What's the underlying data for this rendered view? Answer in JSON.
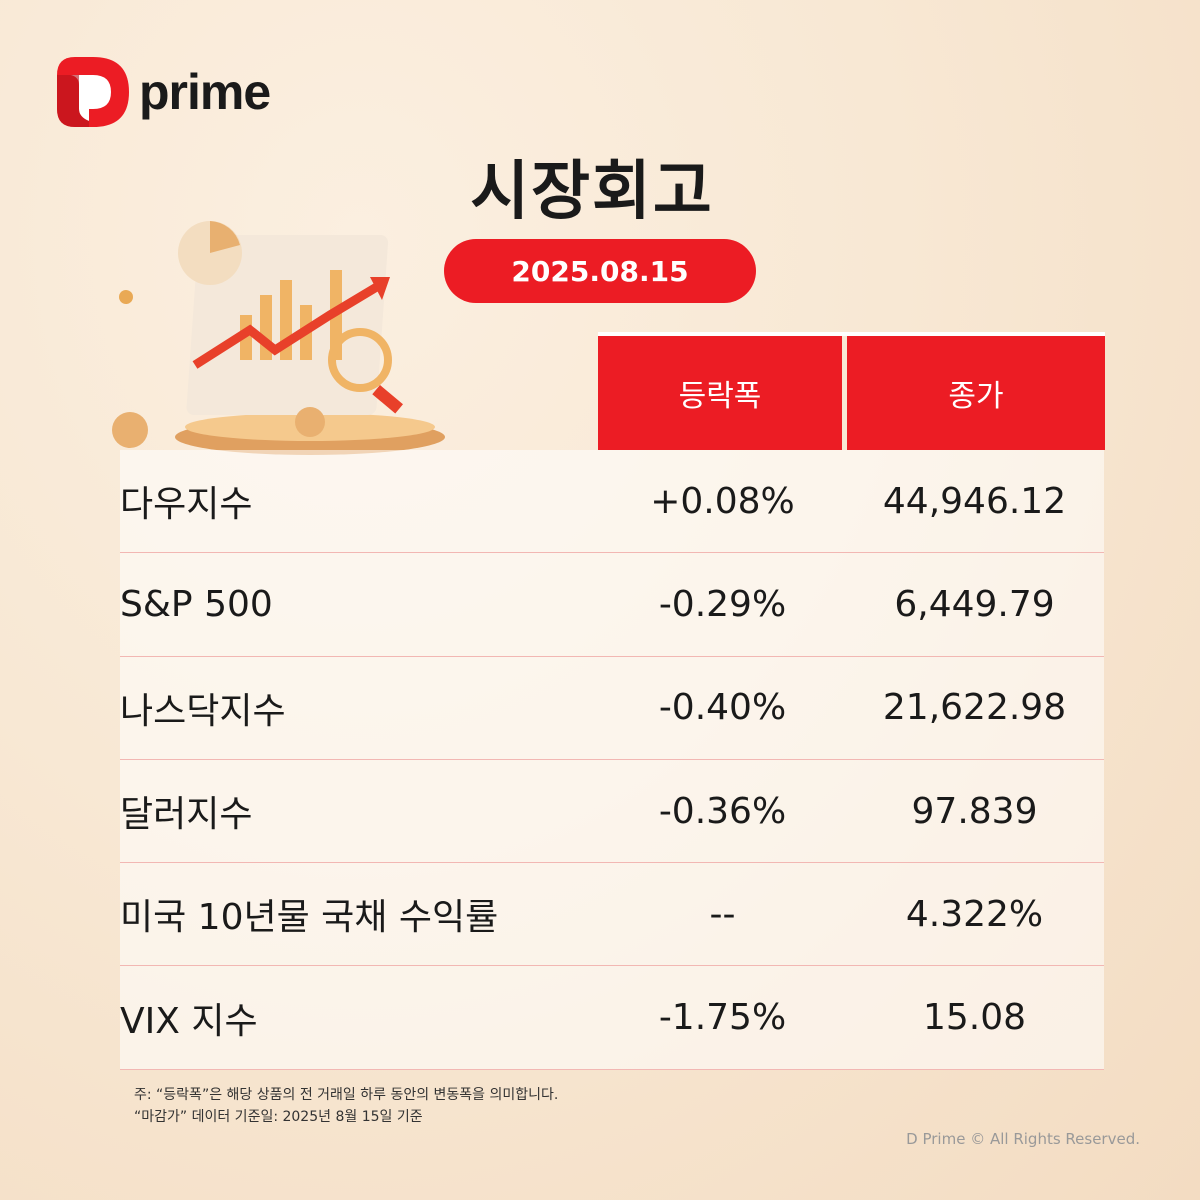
{
  "brand": {
    "name": "prime",
    "mark_color": "#ec1c24"
  },
  "title": "시장회고",
  "date": "2025.08.15",
  "table": {
    "headers": [
      "등락폭",
      "종가"
    ],
    "rows": [
      {
        "name": "다우지수",
        "change": "+0.08%",
        "close": "44,946.12"
      },
      {
        "name": "S&P 500",
        "change": "-0.29%",
        "close": "6,449.79"
      },
      {
        "name": "나스닥지수",
        "change": "-0.40%",
        "close": "21,622.98"
      },
      {
        "name": "달러지수",
        "change": "-0.36%",
        "close": "97.839"
      },
      {
        "name": "미국 10년물 국채 수익률",
        "change": "--",
        "close": "4.322%"
      },
      {
        "name": "VIX 지수",
        "change": "-1.75%",
        "close": "15.08"
      }
    ]
  },
  "notes": [
    "주: “등락폭”은 해당 상품의 전 거래일 하루 동안의 변동폭을 의미합니다.",
    "“마감가” 데이터 기준일: 2025년 8월 15일 기준"
  ],
  "copyright": "D Prime © All Rights Reserved.",
  "colors": {
    "accent": "#ec1c24"
  }
}
